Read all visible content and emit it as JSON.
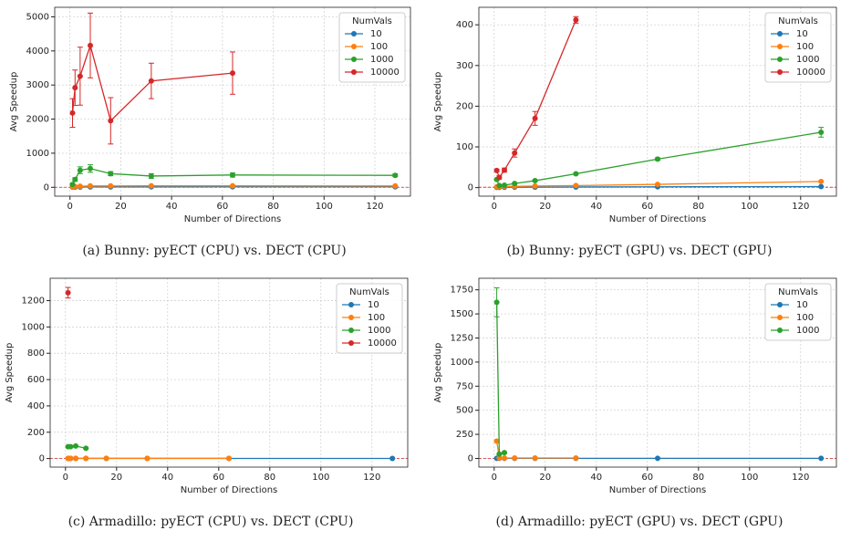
{
  "chart_data": [
    {
      "type": "line",
      "caption": "(a) Bunny: pyECT (CPU) vs. DECT (CPU)",
      "xlabel": "Number of Directions",
      "ylabel": "Avg Speedup",
      "legend_title": "NumVals",
      "legend": "upper right",
      "grid": true,
      "xlim": [
        -6,
        134
      ],
      "xticks": [
        0,
        20,
        40,
        60,
        80,
        100,
        120
      ],
      "ylim": [
        -260,
        5280
      ],
      "yticks": [
        0,
        1000,
        2000,
        3000,
        4000,
        5000
      ],
      "reference_line": {
        "value": 1,
        "color": "#d62728"
      },
      "series": [
        {
          "name": "10",
          "color": "#1f77b4",
          "x": [
            1,
            2,
            4,
            8,
            16,
            32,
            64,
            128
          ],
          "values": [
            3,
            5,
            8,
            10,
            12,
            13,
            14,
            15
          ],
          "errors": [
            1,
            1,
            2,
            2,
            2,
            2,
            2,
            2
          ]
        },
        {
          "name": "100",
          "color": "#ff7f0e",
          "x": [
            1,
            2,
            4,
            8,
            16,
            32,
            64,
            128
          ],
          "values": [
            10,
            20,
            30,
            40,
            40,
            45,
            45,
            40
          ],
          "errors": [
            3,
            4,
            5,
            6,
            6,
            6,
            6,
            5
          ]
        },
        {
          "name": "1000",
          "color": "#2ca02c",
          "x": [
            1,
            2,
            4,
            8,
            16,
            32,
            64,
            128
          ],
          "values": [
            80,
            230,
            500,
            550,
            400,
            330,
            360,
            350
          ],
          "errors": [
            20,
            50,
            100,
            110,
            60,
            70,
            60,
            40
          ]
        },
        {
          "name": "10000",
          "color": "#d62728",
          "x": [
            1,
            2,
            4,
            8,
            16,
            32,
            64
          ],
          "values": [
            2180,
            2920,
            3260,
            4160,
            1950,
            3120,
            3350
          ],
          "errors": [
            420,
            520,
            850,
            950,
            680,
            520,
            620
          ]
        }
      ]
    },
    {
      "type": "line",
      "caption": "(b) Bunny: pyECT (GPU) vs. DECT (GPU)",
      "xlabel": "Number of Directions",
      "ylabel": "Avg Speedup",
      "legend_title": "NumVals",
      "legend": "upper right",
      "grid": true,
      "xlim": [
        -6,
        134
      ],
      "xticks": [
        0,
        20,
        40,
        60,
        80,
        100,
        120
      ],
      "ylim": [
        -21,
        443
      ],
      "yticks": [
        0,
        100,
        200,
        300,
        400
      ],
      "reference_line": {
        "value": 1,
        "color": "#d62728"
      },
      "series": [
        {
          "name": "10",
          "color": "#1f77b4",
          "x": [
            1,
            2,
            4,
            8,
            16,
            32,
            64,
            128
          ],
          "values": [
            0.5,
            0.6,
            0.8,
            1,
            1.2,
            1.5,
            2,
            2.5
          ],
          "errors": [
            0.1,
            0.1,
            0.1,
            0.1,
            0.1,
            0.2,
            0.2,
            0.3
          ]
        },
        {
          "name": "100",
          "color": "#ff7f0e",
          "x": [
            1,
            2,
            4,
            8,
            16,
            32,
            64,
            128
          ],
          "values": [
            2,
            2,
            3,
            3,
            4,
            5,
            8,
            15
          ],
          "errors": [
            0.3,
            0.3,
            0.4,
            0.4,
            0.5,
            0.6,
            1,
            2
          ]
        },
        {
          "name": "1000",
          "color": "#2ca02c",
          "x": [
            1,
            2,
            4,
            8,
            16,
            32,
            64,
            128
          ],
          "values": [
            20,
            5,
            6,
            10,
            17,
            34,
            70,
            136
          ],
          "errors": [
            2,
            1,
            1,
            1,
            2,
            2,
            3,
            12
          ]
        },
        {
          "name": "10000",
          "color": "#d62728",
          "x": [
            1,
            2,
            4,
            8,
            16,
            32
          ],
          "values": [
            42,
            25,
            43,
            85,
            170,
            412
          ],
          "errors": [
            3,
            4,
            5,
            10,
            17,
            8
          ]
        }
      ]
    },
    {
      "type": "line",
      "caption": "(c) Armadillo: pyECT (CPU) vs. DECT (CPU)",
      "xlabel": "Number of Directions",
      "ylabel": "Avg Speedup",
      "legend_title": "NumVals",
      "legend": "upper right",
      "grid": true,
      "xlim": [
        -6,
        134
      ],
      "xticks": [
        0,
        20,
        40,
        60,
        80,
        100,
        120
      ],
      "ylim": [
        -65,
        1370
      ],
      "yticks": [
        0,
        200,
        400,
        600,
        800,
        1000,
        1200
      ],
      "reference_line": {
        "value": 1,
        "color": "#d62728"
      },
      "series": [
        {
          "name": "10",
          "color": "#1f77b4",
          "x": [
            1,
            2,
            4,
            8,
            16,
            32,
            64,
            128
          ],
          "values": [
            1,
            1,
            1,
            1,
            1,
            1,
            1,
            1
          ],
          "errors": [
            0.1,
            0.1,
            0.1,
            0.1,
            0.1,
            0.1,
            0.1,
            0.1
          ]
        },
        {
          "name": "100",
          "color": "#ff7f0e",
          "x": [
            1,
            2,
            4,
            8,
            16,
            32,
            64
          ],
          "values": [
            2,
            2,
            2,
            2,
            2,
            2,
            2
          ],
          "errors": [
            0.2,
            0.2,
            0.2,
            0.2,
            0.2,
            0.2,
            0.2
          ]
        },
        {
          "name": "1000",
          "color": "#2ca02c",
          "x": [
            1,
            2,
            4,
            8
          ],
          "values": [
            90,
            90,
            95,
            78
          ],
          "errors": [
            4,
            4,
            4,
            4
          ]
        },
        {
          "name": "10000",
          "color": "#d62728",
          "x": [
            1
          ],
          "values": [
            1260
          ],
          "errors": [
            40
          ]
        }
      ]
    },
    {
      "type": "line",
      "caption": "(d) Armadillo: pyECT (GPU) vs. DECT (GPU)",
      "xlabel": "Number of Directions",
      "ylabel": "Avg Speedup",
      "legend_title": "NumVals",
      "legend": "upper right",
      "grid": true,
      "xlim": [
        -6,
        134
      ],
      "xticks": [
        0,
        20,
        40,
        60,
        80,
        100,
        120
      ],
      "ylim": [
        -90,
        1870
      ],
      "yticks": [
        0,
        250,
        500,
        750,
        1000,
        1250,
        1500,
        1750
      ],
      "reference_line": {
        "value": 1,
        "color": "#d62728"
      },
      "series": [
        {
          "name": "10",
          "color": "#1f77b4",
          "x": [
            1,
            2,
            4,
            8,
            16,
            32,
            64,
            128
          ],
          "values": [
            1,
            1,
            1,
            1,
            1,
            1,
            1,
            1
          ],
          "errors": [
            0.1,
            0.1,
            0.1,
            0.1,
            0.1,
            0.1,
            0.1,
            0.1
          ]
        },
        {
          "name": "100",
          "color": "#ff7f0e",
          "x": [
            1,
            2,
            4,
            8,
            16,
            32
          ],
          "values": [
            180,
            5,
            5,
            5,
            5,
            5
          ],
          "errors": [
            10,
            1,
            1,
            1,
            1,
            1
          ]
        },
        {
          "name": "1000",
          "color": "#2ca02c",
          "x": [
            1,
            2,
            4
          ],
          "values": [
            1620,
            45,
            60
          ],
          "errors": [
            150,
            5,
            5
          ]
        }
      ]
    }
  ]
}
